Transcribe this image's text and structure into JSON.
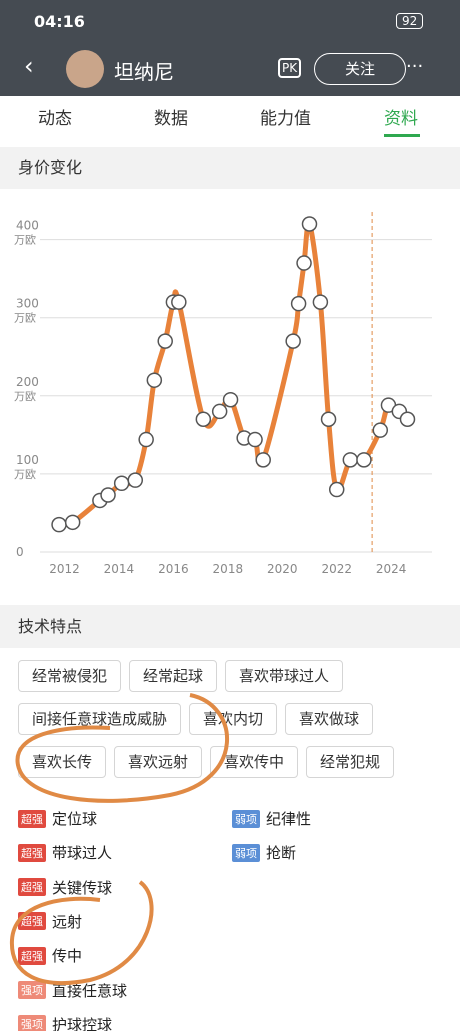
{
  "status": {
    "time": "04:16",
    "battery": "92"
  },
  "header": {
    "name": "坦纳尼",
    "pk": "PK",
    "follow": "关注",
    "more": "···"
  },
  "tabs": [
    "动态",
    "数据",
    "能力值",
    "资料"
  ],
  "sections": {
    "value": "身价变化",
    "skills": "技术特点"
  },
  "chart_data": {
    "type": "line",
    "y_unit": "万欧",
    "color": "#e8823a",
    "x": [
      2011.8,
      2012.3,
      2013.3,
      2013.6,
      2014.1,
      2014.6,
      2015.0,
      2015.3,
      2015.7,
      2016.0,
      2016.2,
      2017.1,
      2017.7,
      2018.1,
      2018.6,
      2019.0,
      2019.3,
      2020.4,
      2020.6,
      2020.8,
      2021.0,
      2021.4,
      2021.7,
      2022.0,
      2022.5,
      2023.0,
      2023.6,
      2023.9,
      2024.3,
      2024.6
    ],
    "values": [
      35,
      38,
      66,
      73,
      88,
      92,
      144,
      220,
      270,
      320,
      320,
      170,
      180,
      195,
      146,
      144,
      118,
      270,
      318,
      370,
      420,
      320,
      170,
      80,
      118,
      118,
      156,
      188,
      180,
      170
    ],
    "xlim": [
      2011.1,
      2025.5
    ],
    "ylim": [
      0,
      420
    ],
    "xticks": [
      2012,
      2014,
      2016,
      2018,
      2020,
      2022,
      2024
    ],
    "yticks": [
      0,
      100,
      200,
      300,
      400
    ],
    "current_x": 2023.3,
    "grid": true
  },
  "tags": [
    "经常被侵犯",
    "经常起球",
    "喜欢带球过人",
    "间接任意球造成威胁",
    "喜欢内切",
    "喜欢做球",
    "喜欢长传",
    "喜欢远射",
    "喜欢传中",
    "经常犯规"
  ],
  "strengths": [
    {
      "level": "超强",
      "name": "定位球",
      "color": "#e04a3f"
    },
    {
      "level": "超强",
      "name": "带球过人",
      "color": "#e04a3f"
    },
    {
      "level": "超强",
      "name": "关键传球",
      "color": "#e04a3f"
    },
    {
      "level": "超强",
      "name": "远射",
      "color": "#e04a3f"
    },
    {
      "level": "超强",
      "name": "传中",
      "color": "#e04a3f"
    },
    {
      "level": "强项",
      "name": "直接任意球",
      "color": "#ee8a78"
    },
    {
      "level": "强项",
      "name": "护球控球",
      "color": "#ee8a78"
    }
  ],
  "weaknesses": [
    {
      "level": "弱项",
      "name": "纪律性",
      "color": "#5b8fd6"
    },
    {
      "level": "弱项",
      "name": "抢断",
      "color": "#5b8fd6"
    }
  ]
}
